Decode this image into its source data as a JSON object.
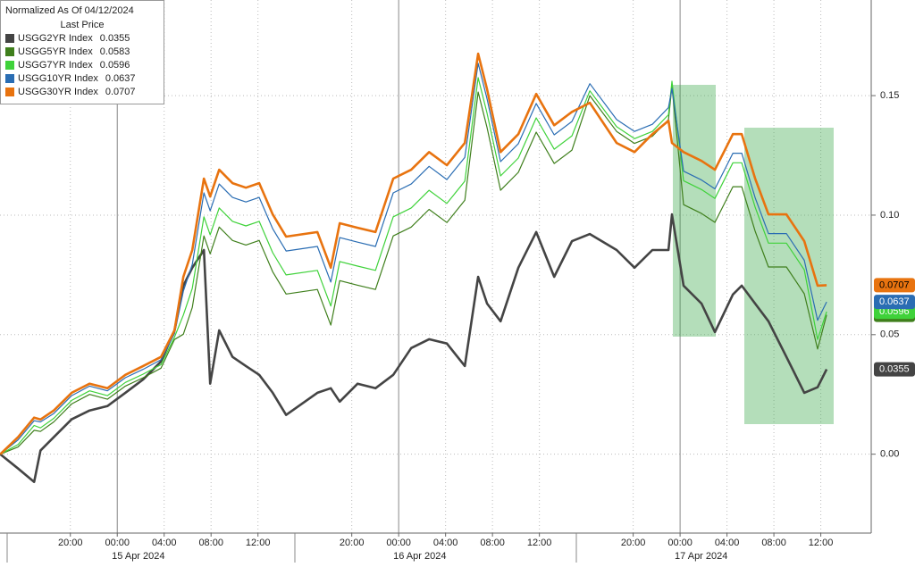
{
  "chart_data": {
    "type": "line",
    "legend_title": "Normalized As Of 04/12/2024",
    "legend_subtitle": "Last Price",
    "x": [
      -9.98,
      -8.46,
      -7.09,
      -6.55,
      -5.41,
      -3.89,
      -2.36,
      -0.84,
      0.69,
      2.21,
      3.73,
      4.88,
      5.64,
      6.4,
      7.39,
      7.92,
      8.69,
      9.83,
      10.97,
      12.11,
      13.26,
      14.4,
      17.07,
      18.21,
      18.97,
      20.5,
      22.02,
      23.54,
      25.07,
      26.59,
      28.11,
      29.64,
      30.78,
      31.54,
      32.69,
      34.21,
      35.73,
      37.26,
      38.78,
      40.3,
      42.59,
      44.11,
      45.64,
      47.01,
      47.31,
      48.3,
      49.83,
      50.97,
      52.5,
      53.26,
      54.4,
      55.54,
      57.07,
      58.59,
      59.73,
      60.5
    ],
    "series": [
      {
        "name": "USGG2YR Index",
        "color": "#444444",
        "values": [
          0.0,
          -0.006,
          -0.0116,
          0.0015,
          0.0071,
          0.0146,
          0.0183,
          0.0201,
          0.0257,
          0.0313,
          0.0388,
          0.0518,
          0.0705,
          0.078,
          0.0854,
          0.0295,
          0.0518,
          0.0407,
          0.0369,
          0.0332,
          0.0257,
          0.0164,
          0.0257,
          0.0276,
          0.022,
          0.0295,
          0.0276,
          0.0332,
          0.0444,
          0.0481,
          0.0463,
          0.0369,
          0.0742,
          0.063,
          0.0556,
          0.078,
          0.0929,
          0.0742,
          0.0891,
          0.0921,
          0.0854,
          0.078,
          0.0854,
          0.0854,
          0.1003,
          0.0705,
          0.063,
          0.0511,
          0.0668,
          0.0705,
          0.063,
          0.0556,
          0.0407,
          0.0257,
          0.028,
          0.0355
        ]
      },
      {
        "name": "USGG5YR Index",
        "color": "#3f7f1c",
        "values": [
          0.0,
          0.003,
          0.01,
          0.0095,
          0.0135,
          0.021,
          0.025,
          0.023,
          0.0285,
          0.032,
          0.036,
          0.048,
          0.0502,
          0.0614,
          0.0913,
          0.0838,
          0.095,
          0.0894,
          0.0875,
          0.0894,
          0.0763,
          0.067,
          0.0689,
          0.054,
          0.0726,
          0.0707,
          0.0689,
          0.0913,
          0.095,
          0.1024,
          0.0969,
          0.1062,
          0.1515,
          0.1366,
          0.1104,
          0.1179,
          0.1347,
          0.1216,
          0.1272,
          0.15,
          0.135,
          0.13,
          0.133,
          0.14,
          0.154,
          0.1044,
          0.1007,
          0.097,
          0.1119,
          0.1119,
          0.0933,
          0.0783,
          0.0783,
          0.0671,
          0.044,
          0.0583
        ]
      },
      {
        "name": "USGG7YR Index",
        "color": "#3fd23a",
        "values": [
          0.0,
          0.004,
          0.012,
          0.011,
          0.015,
          0.0225,
          0.0265,
          0.0245,
          0.03,
          0.0335,
          0.0375,
          0.049,
          0.0582,
          0.0694,
          0.0993,
          0.0918,
          0.103,
          0.0974,
          0.0955,
          0.0974,
          0.0843,
          0.075,
          0.0769,
          0.062,
          0.0806,
          0.0787,
          0.0769,
          0.0993,
          0.103,
          0.1104,
          0.1049,
          0.1142,
          0.1575,
          0.1426,
          0.1164,
          0.1239,
          0.1407,
          0.1276,
          0.1332,
          0.152,
          0.137,
          0.132,
          0.135,
          0.142,
          0.156,
          0.1144,
          0.1107,
          0.107,
          0.1219,
          0.1219,
          0.1033,
          0.0883,
          0.0883,
          0.0771,
          0.048,
          0.0596
        ]
      },
      {
        "name": "USGG10YR Index",
        "color": "#2a6db3",
        "values": [
          0.0,
          0.006,
          0.014,
          0.0135,
          0.017,
          0.0245,
          0.0285,
          0.0265,
          0.032,
          0.0355,
          0.0395,
          0.0505,
          0.0682,
          0.0794,
          0.1093,
          0.1018,
          0.113,
          0.1074,
          0.1055,
          0.1074,
          0.0943,
          0.085,
          0.0869,
          0.072,
          0.0906,
          0.0887,
          0.0869,
          0.1093,
          0.113,
          0.1204,
          0.1149,
          0.1242,
          0.1635,
          0.1486,
          0.1224,
          0.1299,
          0.1467,
          0.1336,
          0.1392,
          0.155,
          0.14,
          0.135,
          0.138,
          0.145,
          0.153,
          0.1184,
          0.1147,
          0.111,
          0.1259,
          0.1259,
          0.1073,
          0.0923,
          0.0923,
          0.0811,
          0.056,
          0.0637
        ]
      },
      {
        "name": "USGG30YR Index",
        "color": "#e8730f",
        "values": [
          0.0,
          0.0071,
          0.0153,
          0.0145,
          0.0183,
          0.0257,
          0.0295,
          0.0276,
          0.0332,
          0.0369,
          0.0407,
          0.0518,
          0.0742,
          0.0854,
          0.1153,
          0.1078,
          0.119,
          0.1134,
          0.1115,
          0.1134,
          0.1003,
          0.091,
          0.0929,
          0.078,
          0.0966,
          0.0947,
          0.0929,
          0.1153,
          0.119,
          0.1264,
          0.1209,
          0.1302,
          0.1675,
          0.1526,
          0.1264,
          0.1339,
          0.1507,
          0.1376,
          0.1432,
          0.147,
          0.1302,
          0.1264,
          0.1339,
          0.1395,
          0.1302,
          0.1264,
          0.1227,
          0.119,
          0.1339,
          0.1339,
          0.1153,
          0.1003,
          0.1003,
          0.0891,
          0.0705,
          0.0707
        ]
      }
    ],
    "xlim": [
      -10,
      64.3
    ],
    "xticks": [
      {
        "value": -4,
        "label": "20:00"
      },
      {
        "value": 0,
        "label": "00:00"
      },
      {
        "value": 4,
        "label": "04:00"
      },
      {
        "value": 8,
        "label": "08:00"
      },
      {
        "value": 12,
        "label": "12:00"
      },
      {
        "value": 20,
        "label": "20:00"
      },
      {
        "value": 24,
        "label": "00:00"
      },
      {
        "value": 28,
        "label": "04:00"
      },
      {
        "value": 32,
        "label": "08:00"
      },
      {
        "value": 36,
        "label": "12:00"
      },
      {
        "value": 44,
        "label": "20:00"
      },
      {
        "value": 48,
        "label": "00:00"
      },
      {
        "value": 52,
        "label": "04:00"
      },
      {
        "value": 56,
        "label": "08:00"
      },
      {
        "value": 60,
        "label": "12:00"
      }
    ],
    "date_labels": [
      "15 Apr 2024",
      "16 Apr 2024",
      "17 Apr 2024"
    ],
    "ylim": [
      -0.033,
      0.19
    ],
    "yticks": [
      {
        "value": 0,
        "label": "0.00"
      },
      {
        "value": 0.05,
        "label": "0.05"
      },
      {
        "value": 0.1,
        "label": "0.10"
      },
      {
        "value": 0.15,
        "label": "0.15"
      }
    ],
    "grid": true
  }
}
